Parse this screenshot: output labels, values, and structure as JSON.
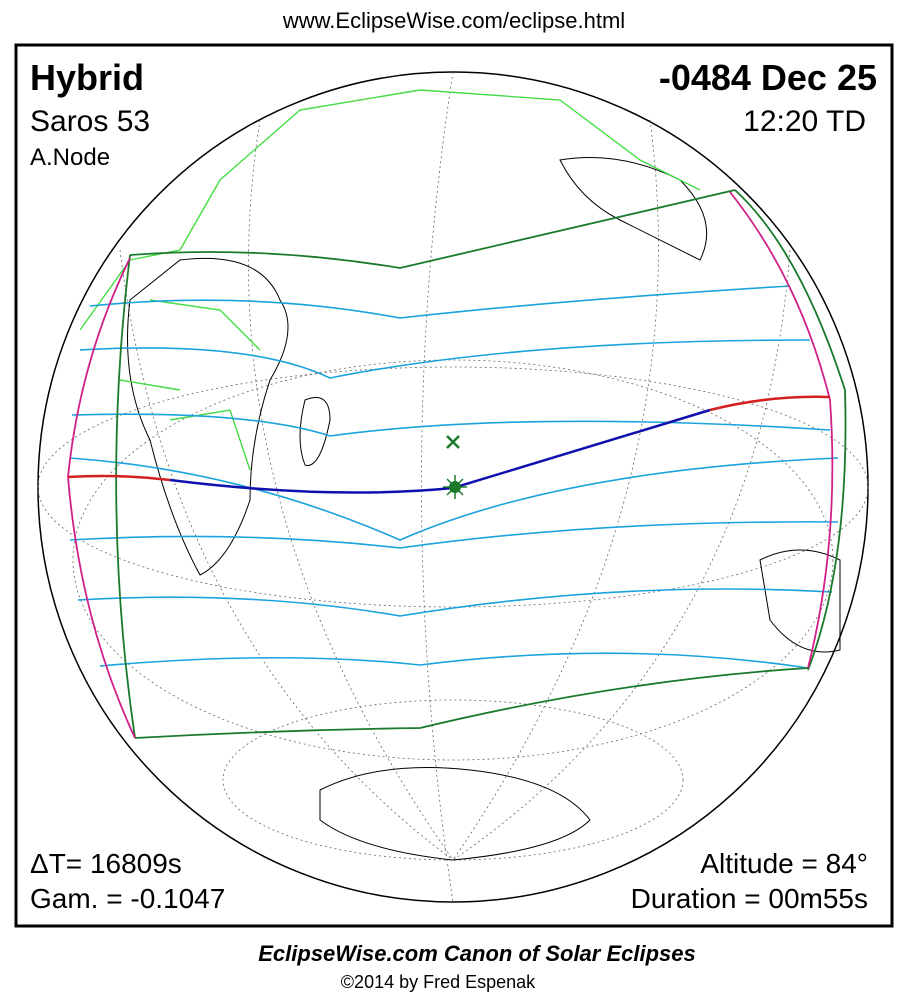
{
  "header": {
    "url": "www.EclipseWise.com/eclipse.html"
  },
  "panel": {
    "type": "Hybrid",
    "saros": "Saros  53",
    "node": "A.Node",
    "date": "-0484 Dec 25",
    "time": "12:20 TD",
    "delta_t": "ΔT=  16809s",
    "gamma": "Gam. = -0.1047",
    "altitude": "Altitude = 84°",
    "duration": "Duration = 00m55s"
  },
  "footer": {
    "title": "EclipseWise.com Canon of Solar Eclipses",
    "copyright": "©2014 by Fred Espenak"
  }
}
